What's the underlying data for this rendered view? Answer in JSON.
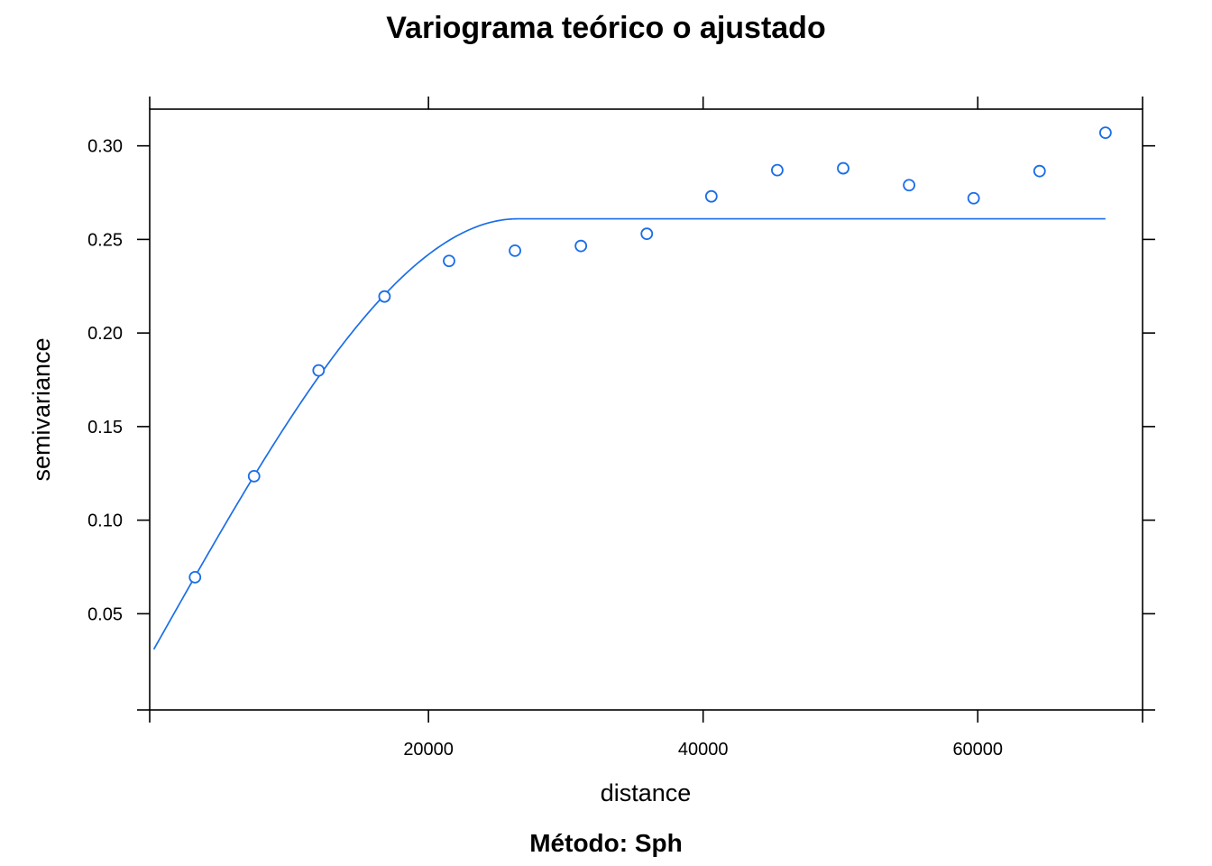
{
  "chart_data": {
    "type": "scatter",
    "title": "Variograma teórico o ajustado",
    "subtitle": "Método: Sph",
    "xlabel": "distance",
    "ylabel": "semivariance",
    "xlim": [
      -300,
      72000
    ],
    "ylim": [
      -0.0014,
      0.3196
    ],
    "xticks": [
      20000,
      40000,
      60000
    ],
    "xtick_labels": [
      "20000",
      "40000",
      "60000"
    ],
    "yticks": [
      0.05,
      0.1,
      0.15,
      0.2,
      0.25,
      0.3
    ],
    "ytick_labels": [
      "0.05",
      "0.10",
      "0.15",
      "0.20",
      "0.25",
      "0.30"
    ],
    "grid": false,
    "color": "#1a6ee8",
    "series": [
      {
        "type": "scatter",
        "x": [
          3000,
          7300,
          12000,
          16800,
          21500,
          26300,
          31100,
          35900,
          40600,
          45400,
          50200,
          55000,
          59700,
          64500,
          69300
        ],
        "y": [
          0.0695,
          0.1235,
          0.18,
          0.2195,
          0.2385,
          0.244,
          0.2465,
          0.253,
          0.273,
          0.287,
          0.288,
          0.279,
          0.272,
          0.2865,
          0.307
        ]
      },
      {
        "type": "line",
        "model": "Sph",
        "nugget": 0.031,
        "partial_sill": 0.23,
        "range": 26500,
        "x_max": 69300
      }
    ]
  }
}
